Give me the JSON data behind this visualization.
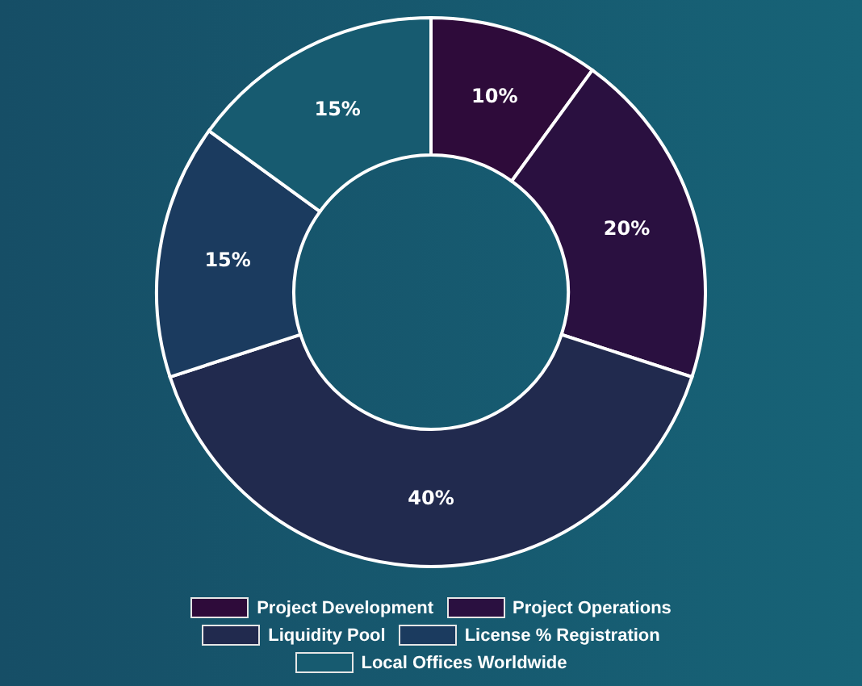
{
  "chart_data": {
    "type": "donut",
    "categories": [
      "Project Development",
      "Project Operations",
      "Liquidity Pool",
      "License % Registration",
      "Local Offices Worldwide"
    ],
    "values": [
      10,
      20,
      40,
      15,
      15
    ],
    "colors": [
      "#2e0b3a",
      "#2a1040",
      "#212a4e",
      "#1b3b5f",
      "#175b70"
    ],
    "value_labels": [
      "10%",
      "20%",
      "40%",
      "15%",
      "15%"
    ],
    "legend": "bottom"
  }
}
